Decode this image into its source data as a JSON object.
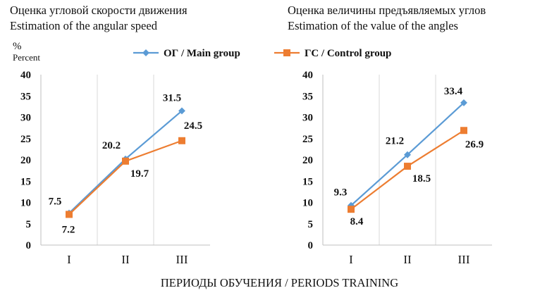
{
  "titles": {
    "left_ru": "Оценка угловой скорости движения",
    "left_en": "Estimation of the angular speed",
    "right_ru": "Оценка величины предъявляемых углов",
    "right_en": "Estimation of the value of the angles"
  },
  "y_unit": {
    "symbol": "%",
    "text": "Percent"
  },
  "x_axis_label": "ПЕРИОДЫ ОБУЧЕНИЯ / PERIODS TRAINING",
  "colors": {
    "main": "#5b9bd5",
    "control": "#ed7d31",
    "grid": "#d9d9d9"
  },
  "chart_data": [
    {
      "type": "line",
      "title": "Оценка угловой скорости движения / Estimation of the angular speed",
      "categories": [
        "I",
        "II",
        "III"
      ],
      "ylim": [
        0,
        40
      ],
      "yticks": [
        0,
        5,
        10,
        15,
        20,
        25,
        30,
        35,
        40
      ],
      "ylabel": "% Percent",
      "xlabel": "ПЕРИОДЫ ОБУЧЕНИЯ / PERIODS TRAINING",
      "legend": "top",
      "series": [
        {
          "name": "ОГ / Main group",
          "values": [
            7.5,
            20.2,
            31.5
          ],
          "labels": [
            "7.5",
            "20.2",
            "31.5"
          ]
        },
        {
          "name": "ГС / Control group",
          "values": [
            7.2,
            19.7,
            24.5
          ],
          "labels": [
            "7.2",
            "19.7",
            "24.5"
          ]
        }
      ]
    },
    {
      "type": "line",
      "title": "Оценка величины предъявляемых углов / Estimation of the value of the angles",
      "categories": [
        "I",
        "II",
        "III"
      ],
      "ylim": [
        0,
        40
      ],
      "yticks": [
        0,
        5,
        10,
        15,
        20,
        25,
        30,
        35,
        40
      ],
      "ylabel": "% Percent",
      "xlabel": "ПЕРИОДЫ ОБУЧЕНИЯ / PERIODS TRAINING",
      "legend": "top",
      "series": [
        {
          "name": "ОГ / Main group",
          "values": [
            9.3,
            21.2,
            33.4
          ],
          "labels": [
            "9.3",
            "21.2",
            "33.4"
          ]
        },
        {
          "name": "ГС / Control group",
          "values": [
            8.4,
            18.5,
            26.9
          ],
          "labels": [
            "8.4",
            "18.5",
            "26.9"
          ]
        }
      ]
    }
  ]
}
